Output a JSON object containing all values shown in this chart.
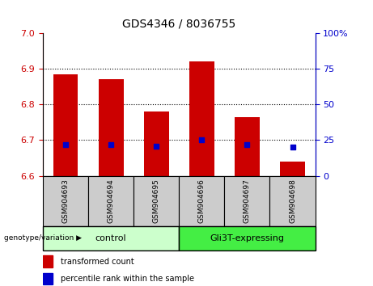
{
  "title": "GDS4346 / 8036755",
  "samples": [
    "GSM904693",
    "GSM904694",
    "GSM904695",
    "GSM904696",
    "GSM904697",
    "GSM904698"
  ],
  "transformed_counts": [
    6.885,
    6.87,
    6.78,
    6.92,
    6.765,
    6.64
  ],
  "percentile_ranks": [
    22,
    22,
    21,
    25,
    22,
    20
  ],
  "bar_bottom": 6.6,
  "ylim_left": [
    6.6,
    7.0
  ],
  "ylim_right": [
    0,
    100
  ],
  "yticks_left": [
    6.6,
    6.7,
    6.8,
    6.9,
    7.0
  ],
  "yticks_right": [
    0,
    25,
    50,
    75,
    100
  ],
  "ytick_right_labels": [
    "0",
    "25",
    "50",
    "75",
    "100%"
  ],
  "bar_color": "#cc0000",
  "dot_color": "#0000cc",
  "groups": [
    {
      "label": "control",
      "color": "#ccffcc",
      "start": 0,
      "end": 3
    },
    {
      "label": "Gli3T-expressing",
      "color": "#44ee44",
      "start": 3,
      "end": 6
    }
  ],
  "xlabel_area_color": "#cccccc",
  "grid_yticks": [
    6.7,
    6.8,
    6.9
  ],
  "left_tick_color": "#cc0000",
  "right_tick_color": "#0000cc",
  "legend": [
    {
      "label": "transformed count",
      "color": "#cc0000"
    },
    {
      "label": "percentile rank within the sample",
      "color": "#0000cc"
    }
  ]
}
